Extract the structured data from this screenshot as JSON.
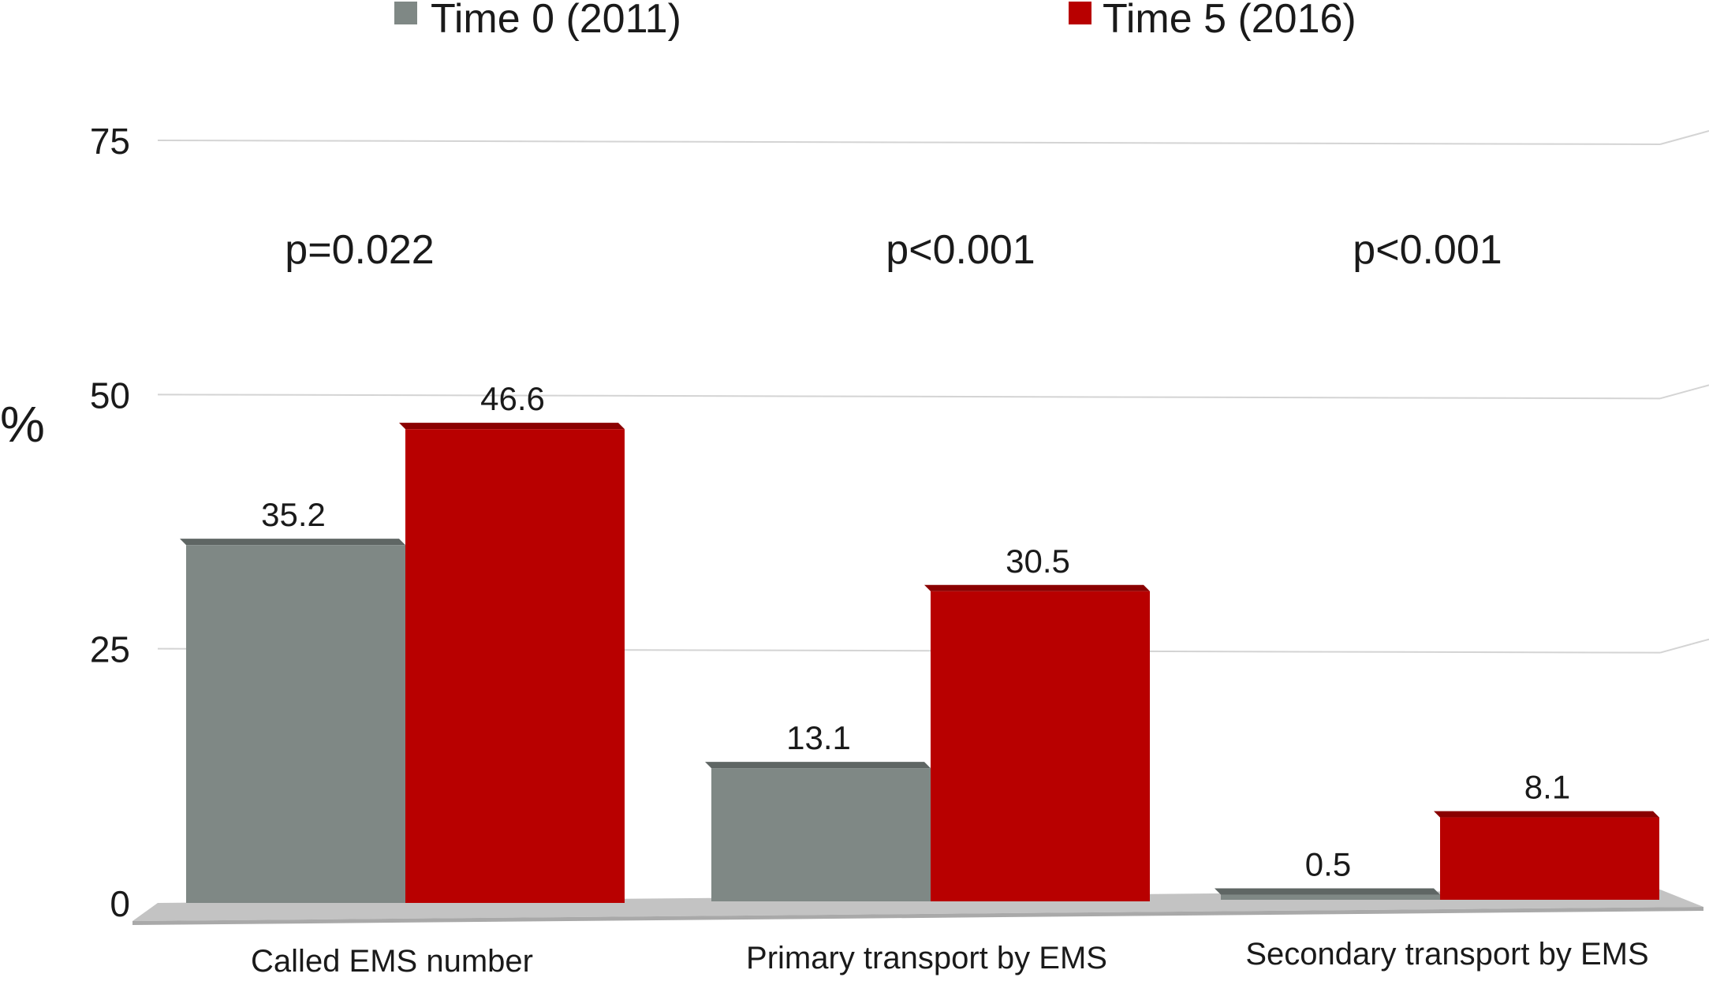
{
  "chart_data": {
    "type": "bar",
    "ylabel": "%",
    "ylim": [
      0,
      75
    ],
    "yticks": [
      0,
      25,
      50,
      75
    ],
    "categories": [
      "Called EMS number",
      "Primary transport by EMS",
      "Secondary transport by EMS"
    ],
    "series": [
      {
        "name": "Time 0 (2011)",
        "color": "#7f8885",
        "values": [
          35.2,
          13.1,
          0.5
        ],
        "labels": [
          "35.2",
          "13.1",
          "0.5"
        ]
      },
      {
        "name": "Time 5 (2016)",
        "color": "#b80000",
        "values": [
          46.6,
          30.5,
          8.1
        ],
        "labels": [
          "46.6",
          "30.5",
          "8.1"
        ]
      }
    ],
    "annotations": [
      "p=0.022",
      "p<0.001",
      "p<0.001"
    ],
    "grid": true,
    "legend": "top"
  }
}
